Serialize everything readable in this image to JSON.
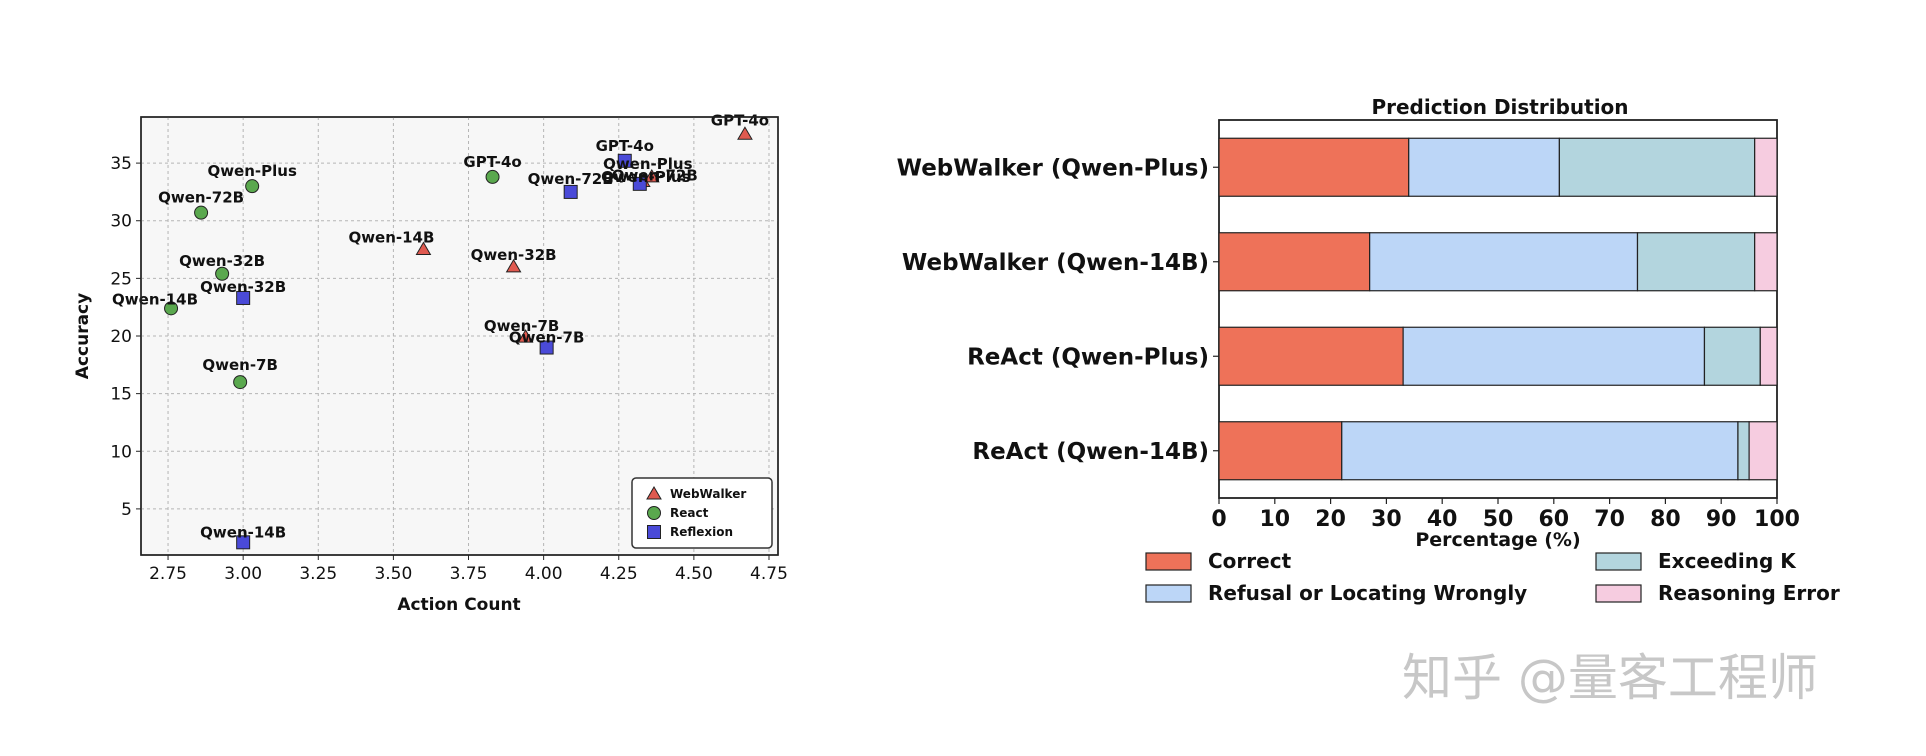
{
  "chart_data": [
    {
      "type": "scatter",
      "title": "",
      "xlabel": "Action Count",
      "ylabel": "Accuracy",
      "xlim": [
        2.66,
        4.78
      ],
      "ylim": [
        1,
        39
      ],
      "xticks": [
        2.75,
        3.0,
        3.25,
        3.5,
        3.75,
        4.0,
        4.25,
        4.5,
        4.75
      ],
      "xtick_labels": [
        "2.75",
        "3.00",
        "3.25",
        "3.50",
        "3.75",
        "4.00",
        "4.25",
        "4.50",
        "4.75"
      ],
      "yticks": [
        5,
        10,
        15,
        20,
        25,
        30,
        35
      ],
      "ytick_labels": [
        "5",
        "10",
        "15",
        "20",
        "25",
        "30",
        "35"
      ],
      "grid": true,
      "legend": "bottom-right",
      "series": [
        {
          "name": "WebWalker",
          "marker": "triangle",
          "color": "#e05a50",
          "points": [
            {
              "label": "GPT-4o",
              "x": 4.67,
              "y": 37.5
            },
            {
              "label": "Qwen-Plus",
              "x": 4.36,
              "y": 33.8
            },
            {
              "label": "Qwen-14B",
              "x": 3.6,
              "y": 27.5
            },
            {
              "label": "Qwen-32B",
              "x": 3.9,
              "y": 26.0
            },
            {
              "label": "Qwen-7B",
              "x": 3.94,
              "y": 19.9
            },
            {
              "label": "Qwen-72B",
              "x": 4.33,
              "y": 33.4
            }
          ]
        },
        {
          "name": "React",
          "marker": "circle",
          "color": "#5aa84e",
          "points": [
            {
              "label": "Qwen-Plus",
              "x": 3.03,
              "y": 33.0
            },
            {
              "label": "Qwen-72B",
              "x": 2.86,
              "y": 30.7
            },
            {
              "label": "GPT-4o",
              "x": 3.83,
              "y": 33.8
            },
            {
              "label": "Qwen-32B",
              "x": 2.93,
              "y": 25.4
            },
            {
              "label": "Qwen-14B",
              "x": 2.76,
              "y": 22.4
            },
            {
              "label": "Qwen-7B",
              "x": 2.99,
              "y": 16.0
            }
          ]
        },
        {
          "name": "Reflexion",
          "marker": "square",
          "color": "#4a4ad8",
          "points": [
            {
              "label": "GPT-4o",
              "x": 4.27,
              "y": 35.2
            },
            {
              "label": "Qwen-72B",
              "x": 4.09,
              "y": 32.5
            },
            {
              "label": "Qwen-Plus",
              "x": 4.32,
              "y": 33.2
            },
            {
              "label": "Qwen-32B",
              "x": 3.0,
              "y": 23.3
            },
            {
              "label": "Qwen-7B",
              "x": 4.01,
              "y": 19.0
            },
            {
              "label": "Qwen-14B",
              "x": 3.0,
              "y": 2.1
            }
          ]
        }
      ]
    },
    {
      "type": "bar",
      "orientation": "horizontal",
      "stacked": true,
      "title": "Prediction Distribution",
      "xlabel": "Percentage (%)",
      "ylabel": "",
      "xlim": [
        0,
        100
      ],
      "xticks": [
        0,
        10,
        20,
        30,
        40,
        50,
        60,
        70,
        80,
        90,
        100
      ],
      "xtick_labels": [
        "0",
        "10",
        "20",
        "30",
        "40",
        "50",
        "60",
        "70",
        "80",
        "90",
        "100"
      ],
      "legend": "bottom",
      "categories": [
        "WebWalker (Qwen-Plus)",
        "WebWalker (Qwen-14B)",
        "ReAct (Qwen-Plus)",
        "ReAct (Qwen-14B)"
      ],
      "series": [
        {
          "name": "Correct",
          "color": "#ee7259",
          "values": [
            34,
            27,
            33,
            22
          ]
        },
        {
          "name": "Refusal or Locating Wrongly",
          "color": "#bcd6f7",
          "values": [
            27,
            48,
            54,
            71
          ]
        },
        {
          "name": "Exceeding K",
          "color": "#b3d5de",
          "values": [
            35,
            21,
            10,
            2
          ]
        },
        {
          "name": "Reasoning Error",
          "color": "#f6cce0",
          "values": [
            4,
            4,
            3,
            5
          ]
        }
      ]
    }
  ],
  "watermark": "知乎 @量客工程师"
}
